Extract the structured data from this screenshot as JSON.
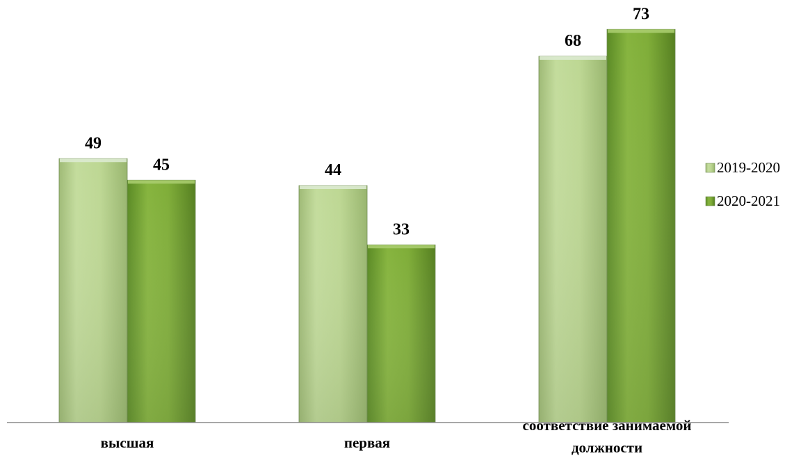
{
  "chart_data": {
    "type": "bar",
    "categories": [
      "высшая",
      "первая",
      "соответствие занимаемой должности"
    ],
    "category_lines": [
      [
        "высшая"
      ],
      [
        "первая"
      ],
      [
        "соответствие занимаемой",
        "должности"
      ]
    ],
    "series": [
      {
        "name": "2019-2020",
        "values": [
          49,
          44,
          68
        ],
        "color": "#b5d28c"
      },
      {
        "name": "2020-2021",
        "values": [
          45,
          33,
          73
        ],
        "color": "#7aa637"
      }
    ],
    "ylim": [
      0,
      80
    ],
    "grid": false,
    "legend": "right",
    "show_value_labels": true
  }
}
